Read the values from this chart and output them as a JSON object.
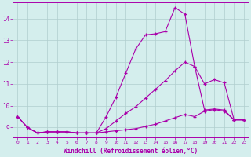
{
  "xlabel": "Windchill (Refroidissement éolien,°C)",
  "background_color": "#d4eeed",
  "grid_color": "#b0cece",
  "line_color": "#aa00aa",
  "xlim": [
    -0.5,
    23.5
  ],
  "ylim": [
    8.55,
    14.75
  ],
  "x_ticks": [
    0,
    1,
    2,
    3,
    4,
    5,
    6,
    7,
    8,
    9,
    10,
    11,
    12,
    13,
    14,
    15,
    16,
    17,
    18,
    19,
    20,
    21,
    22,
    23
  ],
  "y_ticks": [
    9,
    10,
    11,
    12,
    13,
    14
  ],
  "line1_x": [
    0,
    1,
    2,
    3,
    4,
    5,
    6,
    7,
    8,
    9,
    10,
    11,
    12,
    13,
    14,
    15,
    16,
    17,
    18,
    19,
    20,
    21,
    22,
    23
  ],
  "line1_y": [
    9.5,
    9.0,
    8.75,
    8.8,
    8.8,
    8.8,
    8.75,
    8.75,
    8.75,
    9.5,
    10.4,
    11.5,
    12.6,
    13.25,
    13.3,
    13.4,
    14.5,
    14.2,
    11.8,
    9.8,
    9.85,
    9.8,
    9.35,
    9.35
  ],
  "line2_x": [
    0,
    1,
    2,
    3,
    4,
    5,
    6,
    7,
    8,
    9,
    10,
    11,
    12,
    13,
    14,
    15,
    16,
    17,
    18,
    19,
    20,
    21,
    22,
    23
  ],
  "line2_y": [
    9.5,
    9.0,
    8.75,
    8.8,
    8.8,
    8.8,
    8.75,
    8.75,
    8.75,
    8.95,
    9.3,
    9.65,
    9.95,
    10.35,
    10.75,
    11.15,
    11.6,
    12.0,
    11.8,
    11.0,
    11.2,
    11.05,
    9.35,
    9.35
  ],
  "line3_x": [
    0,
    1,
    2,
    3,
    4,
    5,
    6,
    7,
    8,
    9,
    10,
    11,
    12,
    13,
    14,
    15,
    16,
    17,
    18,
    19,
    20,
    21,
    22,
    23
  ],
  "line3_y": [
    9.5,
    9.0,
    8.75,
    8.8,
    8.8,
    8.8,
    8.75,
    8.75,
    8.75,
    8.8,
    8.85,
    8.9,
    8.95,
    9.05,
    9.15,
    9.3,
    9.45,
    9.6,
    9.5,
    9.75,
    9.82,
    9.75,
    9.35,
    9.35
  ]
}
